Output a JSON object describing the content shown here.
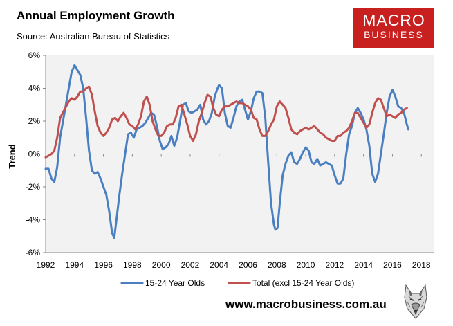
{
  "header": {
    "title": "Annual Employment Growth",
    "subtitle": "Source: Australian Bureau of Statistics"
  },
  "logo": {
    "line1": "MACRO",
    "line2": "BUSINESS",
    "color": "#c8201e"
  },
  "footer": {
    "url": "www.macrobusiness.com.au",
    "mascot_icon": "wolf-head-icon"
  },
  "chart_data": {
    "type": "line",
    "title": "Annual Employment Growth",
    "subtitle": "Source: Australian Bureau of Statistics",
    "xlabel": "",
    "ylabel": "Trend",
    "xlim": [
      1992,
      2018.85
    ],
    "ylim": [
      -6,
      6
    ],
    "yticks": [
      -6,
      -4,
      -2,
      0,
      2,
      4,
      6
    ],
    "ytick_labels": [
      "-6%",
      "-4%",
      "-2%",
      "0%",
      "2%",
      "4%",
      "6%"
    ],
    "xticks": [
      1992,
      1994,
      1996,
      1998,
      2000,
      2002,
      2004,
      2006,
      2008,
      2010,
      2012,
      2014,
      2016,
      2018
    ],
    "xtick_labels": [
      "1992",
      "1994",
      "1996",
      "1998",
      "2000",
      "2002",
      "2004",
      "2006",
      "2008",
      "2010",
      "2012",
      "2014",
      "2016",
      "2018"
    ],
    "grid": false,
    "legend_position": "bottom",
    "plot_background": "#f2f2f2",
    "series": [
      {
        "name": "15-24 Year Olds",
        "color": "#4a7fc1",
        "points": [
          [
            1992.0,
            -0.9
          ],
          [
            1992.2,
            -0.9
          ],
          [
            1992.4,
            -1.5
          ],
          [
            1992.6,
            -1.7
          ],
          [
            1992.8,
            -0.8
          ],
          [
            1993.0,
            1.0
          ],
          [
            1993.3,
            2.5
          ],
          [
            1993.6,
            4.0
          ],
          [
            1993.8,
            5.0
          ],
          [
            1994.0,
            5.4
          ],
          [
            1994.2,
            5.1
          ],
          [
            1994.4,
            4.8
          ],
          [
            1994.6,
            4.0
          ],
          [
            1994.8,
            2.2
          ],
          [
            1995.0,
            0.2
          ],
          [
            1995.2,
            -1.0
          ],
          [
            1995.4,
            -1.2
          ],
          [
            1995.6,
            -1.1
          ],
          [
            1995.8,
            -1.5
          ],
          [
            1996.0,
            -2.0
          ],
          [
            1996.2,
            -2.5
          ],
          [
            1996.4,
            -3.5
          ],
          [
            1996.6,
            -4.8
          ],
          [
            1996.75,
            -5.1
          ],
          [
            1996.9,
            -4.0
          ],
          [
            1997.1,
            -2.5
          ],
          [
            1997.3,
            -1.2
          ],
          [
            1997.5,
            0.0
          ],
          [
            1997.7,
            1.2
          ],
          [
            1997.9,
            1.3
          ],
          [
            1998.1,
            1.0
          ],
          [
            1998.3,
            1.5
          ],
          [
            1998.5,
            1.6
          ],
          [
            1998.7,
            1.7
          ],
          [
            1998.9,
            1.9
          ],
          [
            1999.1,
            2.2
          ],
          [
            1999.3,
            2.5
          ],
          [
            1999.5,
            2.4
          ],
          [
            1999.7,
            1.7
          ],
          [
            1999.9,
            0.8
          ],
          [
            2000.1,
            0.3
          ],
          [
            2000.3,
            0.4
          ],
          [
            2000.5,
            0.6
          ],
          [
            2000.7,
            1.1
          ],
          [
            2000.9,
            0.5
          ],
          [
            2001.1,
            1.0
          ],
          [
            2001.3,
            2.0
          ],
          [
            2001.5,
            3.0
          ],
          [
            2001.7,
            3.1
          ],
          [
            2001.9,
            2.6
          ],
          [
            2002.1,
            2.5
          ],
          [
            2002.3,
            2.6
          ],
          [
            2002.5,
            2.7
          ],
          [
            2002.7,
            3.0
          ],
          [
            2002.9,
            2.1
          ],
          [
            2003.1,
            1.8
          ],
          [
            2003.3,
            2.0
          ],
          [
            2003.5,
            2.5
          ],
          [
            2003.7,
            3.5
          ],
          [
            2003.9,
            4.0
          ],
          [
            2004.0,
            4.2
          ],
          [
            2004.2,
            4.0
          ],
          [
            2004.4,
            2.5
          ],
          [
            2004.6,
            1.7
          ],
          [
            2004.8,
            1.6
          ],
          [
            2005.0,
            2.2
          ],
          [
            2005.2,
            2.9
          ],
          [
            2005.4,
            3.2
          ],
          [
            2005.6,
            3.3
          ],
          [
            2005.8,
            2.7
          ],
          [
            2006.0,
            2.1
          ],
          [
            2006.2,
            2.6
          ],
          [
            2006.4,
            3.4
          ],
          [
            2006.6,
            3.8
          ],
          [
            2006.8,
            3.8
          ],
          [
            2007.0,
            3.7
          ],
          [
            2007.2,
            2.2
          ],
          [
            2007.4,
            -0.5
          ],
          [
            2007.6,
            -3.0
          ],
          [
            2007.8,
            -4.3
          ],
          [
            2007.9,
            -4.6
          ],
          [
            2008.05,
            -4.5
          ],
          [
            2008.2,
            -3.0
          ],
          [
            2008.4,
            -1.3
          ],
          [
            2008.6,
            -0.6
          ],
          [
            2008.8,
            -0.1
          ],
          [
            2009.0,
            0.1
          ],
          [
            2009.2,
            -0.5
          ],
          [
            2009.4,
            -0.6
          ],
          [
            2009.6,
            -0.3
          ],
          [
            2009.8,
            0.1
          ],
          [
            2010.0,
            0.4
          ],
          [
            2010.2,
            0.2
          ],
          [
            2010.4,
            -0.5
          ],
          [
            2010.6,
            -0.6
          ],
          [
            2010.8,
            -0.3
          ],
          [
            2011.0,
            -0.7
          ],
          [
            2011.2,
            -0.6
          ],
          [
            2011.4,
            -0.5
          ],
          [
            2011.6,
            -0.6
          ],
          [
            2011.8,
            -0.7
          ],
          [
            2012.0,
            -1.3
          ],
          [
            2012.2,
            -1.8
          ],
          [
            2012.4,
            -1.8
          ],
          [
            2012.6,
            -1.5
          ],
          [
            2012.8,
            0.0
          ],
          [
            2013.0,
            1.2
          ],
          [
            2013.2,
            1.7
          ],
          [
            2013.4,
            2.5
          ],
          [
            2013.6,
            2.8
          ],
          [
            2013.8,
            2.5
          ],
          [
            2014.0,
            2.1
          ],
          [
            2014.2,
            1.5
          ],
          [
            2014.4,
            0.5
          ],
          [
            2014.6,
            -1.2
          ],
          [
            2014.8,
            -1.7
          ],
          [
            2015.0,
            -1.2
          ],
          [
            2015.2,
            0.0
          ],
          [
            2015.4,
            1.2
          ],
          [
            2015.6,
            2.5
          ],
          [
            2015.8,
            3.5
          ],
          [
            2016.0,
            3.9
          ],
          [
            2016.2,
            3.5
          ],
          [
            2016.4,
            2.9
          ],
          [
            2016.6,
            2.8
          ],
          [
            2016.8,
            2.5
          ],
          [
            2017.0,
            1.8
          ],
          [
            2017.1,
            1.5
          ]
        ]
      },
      {
        "name": "Total (excl 15-24 Year Olds)",
        "color": "#c0504d",
        "points": [
          [
            1992.0,
            -0.2
          ],
          [
            1992.2,
            -0.1
          ],
          [
            1992.4,
            0.0
          ],
          [
            1992.6,
            0.2
          ],
          [
            1992.8,
            1.0
          ],
          [
            1993.0,
            2.2
          ],
          [
            1993.3,
            2.7
          ],
          [
            1993.6,
            3.2
          ],
          [
            1993.8,
            3.4
          ],
          [
            1994.0,
            3.3
          ],
          [
            1994.2,
            3.5
          ],
          [
            1994.4,
            3.8
          ],
          [
            1994.6,
            3.8
          ],
          [
            1994.8,
            4.0
          ],
          [
            1995.0,
            4.1
          ],
          [
            1995.2,
            3.6
          ],
          [
            1995.4,
            2.6
          ],
          [
            1995.6,
            1.7
          ],
          [
            1995.8,
            1.3
          ],
          [
            1996.0,
            1.1
          ],
          [
            1996.2,
            1.3
          ],
          [
            1996.4,
            1.6
          ],
          [
            1996.6,
            2.1
          ],
          [
            1996.8,
            2.2
          ],
          [
            1997.0,
            2.0
          ],
          [
            1997.2,
            2.3
          ],
          [
            1997.4,
            2.5
          ],
          [
            1997.6,
            2.2
          ],
          [
            1997.8,
            1.8
          ],
          [
            1998.0,
            1.7
          ],
          [
            1998.2,
            1.5
          ],
          [
            1998.4,
            1.8
          ],
          [
            1998.6,
            2.3
          ],
          [
            1998.8,
            3.2
          ],
          [
            1999.0,
            3.5
          ],
          [
            1999.2,
            3.0
          ],
          [
            1999.4,
            2.0
          ],
          [
            1999.6,
            1.5
          ],
          [
            1999.8,
            1.1
          ],
          [
            2000.0,
            1.1
          ],
          [
            2000.2,
            1.3
          ],
          [
            2000.4,
            1.7
          ],
          [
            2000.6,
            1.8
          ],
          [
            2000.8,
            1.8
          ],
          [
            2001.0,
            2.2
          ],
          [
            2001.2,
            2.9
          ],
          [
            2001.4,
            3.0
          ],
          [
            2001.6,
            2.4
          ],
          [
            2001.8,
            1.8
          ],
          [
            2002.0,
            1.1
          ],
          [
            2002.2,
            0.8
          ],
          [
            2002.4,
            1.2
          ],
          [
            2002.6,
            2.0
          ],
          [
            2002.8,
            2.5
          ],
          [
            2003.0,
            3.1
          ],
          [
            2003.2,
            3.6
          ],
          [
            2003.4,
            3.5
          ],
          [
            2003.6,
            2.8
          ],
          [
            2003.8,
            2.4
          ],
          [
            2004.0,
            2.3
          ],
          [
            2004.2,
            2.7
          ],
          [
            2004.4,
            2.9
          ],
          [
            2004.6,
            2.9
          ],
          [
            2004.8,
            3.0
          ],
          [
            2005.0,
            3.1
          ],
          [
            2005.2,
            3.2
          ],
          [
            2005.4,
            3.1
          ],
          [
            2005.6,
            3.1
          ],
          [
            2005.8,
            3.0
          ],
          [
            2006.0,
            2.9
          ],
          [
            2006.2,
            2.7
          ],
          [
            2006.4,
            2.2
          ],
          [
            2006.6,
            2.1
          ],
          [
            2006.8,
            1.5
          ],
          [
            2007.0,
            1.1
          ],
          [
            2007.2,
            1.1
          ],
          [
            2007.4,
            1.4
          ],
          [
            2007.6,
            1.8
          ],
          [
            2007.8,
            2.1
          ],
          [
            2008.0,
            2.9
          ],
          [
            2008.2,
            3.2
          ],
          [
            2008.4,
            3.0
          ],
          [
            2008.6,
            2.8
          ],
          [
            2008.8,
            2.2
          ],
          [
            2009.0,
            1.5
          ],
          [
            2009.2,
            1.3
          ],
          [
            2009.4,
            1.2
          ],
          [
            2009.6,
            1.4
          ],
          [
            2009.8,
            1.5
          ],
          [
            2010.0,
            1.6
          ],
          [
            2010.2,
            1.5
          ],
          [
            2010.4,
            1.6
          ],
          [
            2010.6,
            1.7
          ],
          [
            2010.8,
            1.5
          ],
          [
            2011.0,
            1.3
          ],
          [
            2011.2,
            1.2
          ],
          [
            2011.4,
            1.0
          ],
          [
            2011.6,
            0.9
          ],
          [
            2011.8,
            0.8
          ],
          [
            2012.0,
            0.8
          ],
          [
            2012.2,
            1.1
          ],
          [
            2012.4,
            1.1
          ],
          [
            2012.6,
            1.3
          ],
          [
            2012.8,
            1.4
          ],
          [
            2013.0,
            1.6
          ],
          [
            2013.2,
            2.0
          ],
          [
            2013.4,
            2.5
          ],
          [
            2013.6,
            2.5
          ],
          [
            2013.8,
            2.2
          ],
          [
            2014.0,
            1.9
          ],
          [
            2014.2,
            1.6
          ],
          [
            2014.4,
            1.8
          ],
          [
            2014.6,
            2.5
          ],
          [
            2014.8,
            3.1
          ],
          [
            2015.0,
            3.4
          ],
          [
            2015.2,
            3.3
          ],
          [
            2015.4,
            2.8
          ],
          [
            2015.6,
            2.3
          ],
          [
            2015.8,
            2.4
          ],
          [
            2016.0,
            2.3
          ],
          [
            2016.2,
            2.2
          ],
          [
            2016.4,
            2.4
          ],
          [
            2016.6,
            2.5
          ],
          [
            2016.8,
            2.7
          ],
          [
            2017.0,
            2.8
          ]
        ]
      }
    ]
  }
}
